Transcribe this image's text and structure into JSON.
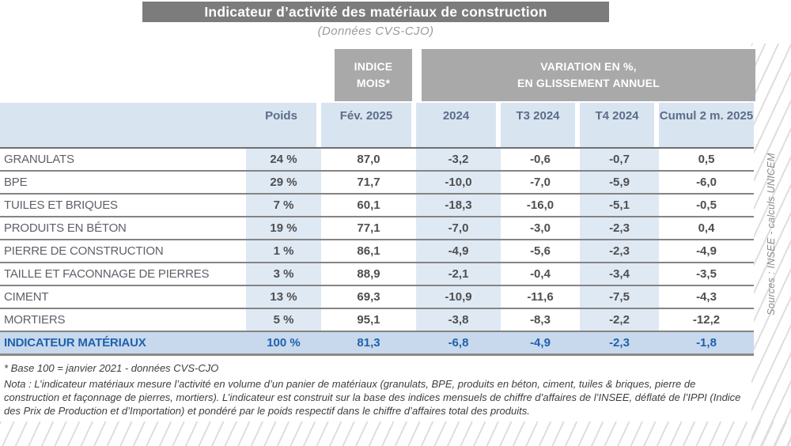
{
  "title": "Indicateur d’activité des matériaux de construction",
  "subtitle": "(Données CVS-CJO)",
  "source_note": "Sources : INSEE - calculs UNICEM",
  "table": {
    "group_headers": {
      "indice_line1": "INDICE",
      "indice_line2": "MOIS*",
      "variation_line1": "VARIATION EN %,",
      "variation_line2": "EN GLISSEMENT ANNUEL"
    },
    "columns": [
      "Poids",
      "Fév. 2025",
      "2024",
      "T3 2024",
      "T4 2024",
      "Cumul 2 m. 2025"
    ],
    "rows": [
      {
        "label": "GRANULATS",
        "values": [
          "24 %",
          "87,0",
          "-3,2",
          "-0,6",
          "-0,7",
          "0,5"
        ]
      },
      {
        "label": "BPE",
        "values": [
          "29 %",
          "71,7",
          "-10,0",
          "-7,0",
          "-5,9",
          "-6,0"
        ]
      },
      {
        "label": "TUILES ET BRIQUES",
        "values": [
          "7 %",
          "60,1",
          "-18,3",
          "-16,0",
          "-5,1",
          "-0,5"
        ]
      },
      {
        "label": "PRODUITS EN BÉTON",
        "values": [
          "19 %",
          "77,1",
          "-7,0",
          "-3,0",
          "-2,3",
          "0,4"
        ]
      },
      {
        "label": "PIERRE DE CONSTRUCTION",
        "values": [
          "1 %",
          "86,1",
          "-4,9",
          "-5,6",
          "-2,3",
          "-4,9"
        ]
      },
      {
        "label": "TAILLE ET FACONNAGE DE PIERRES",
        "values": [
          "3 %",
          "88,9",
          "-2,1",
          "-0,4",
          "-3,4",
          "-3,5"
        ]
      },
      {
        "label": "CIMENT",
        "values": [
          "13 %",
          "69,3",
          "-10,9",
          "-11,6",
          "-7,5",
          "-4,3"
        ]
      },
      {
        "label": "MORTIERS",
        "values": [
          "5 %",
          "95,1",
          "-3,8",
          "-8,3",
          "-2,2",
          "-12,2"
        ]
      },
      {
        "label": "INDICATEUR MATÉRIAUX",
        "values": [
          "100 %",
          "81,3",
          "-6,8",
          "-4,9",
          "-2,3",
          "-1,8"
        ],
        "is_total": true
      }
    ]
  },
  "footnotes": {
    "base": "* Base 100 = janvier 2021 - données CVS-CJO",
    "nota": "Nota :  L’indicateur matériaux mesure l’activité en volume d’un panier de matériaux (granulats, BPE, produits en béton, ciment, tuiles & briques, pierre de construction et façonnage de pierres, mortiers). L’indicateur est construit sur la base des indices mensuels de chiffre d’affaires de l’INSEE, déflaté de l’IPPI (Indice des Prix de Production et d’Importation) et pondéré par le poids respectif dans le chiffre d’affaires total des produits."
  },
  "colors": {
    "title_bar_bg": "#7c7c7c",
    "group_header_bg": "#a9a9a9",
    "header_row_bg": "#d9e4f1",
    "column_tint_bg": "#dfe9f4",
    "total_row_bg": "#c8d9ed",
    "total_text": "#1e61ad",
    "value_text": "#4f4f4f",
    "label_text": "#60606a",
    "header_text": "#5c6d88",
    "border": "#7d7d7d"
  }
}
